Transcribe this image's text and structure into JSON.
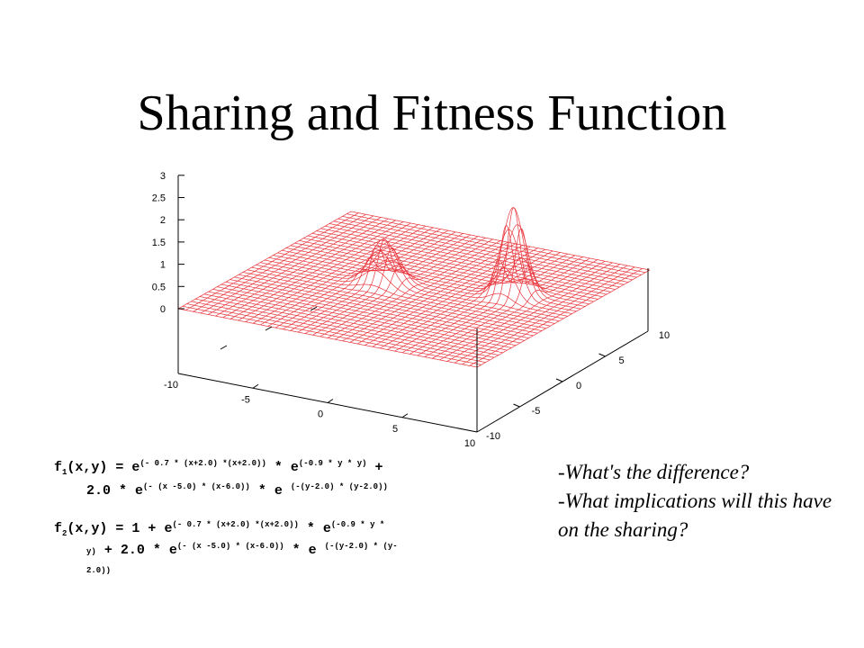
{
  "slide": {
    "title": "Sharing and Fitness Function"
  },
  "plot": {
    "type": "surface",
    "z_ticks": [
      "0",
      "0.5",
      "1",
      "1.5",
      "2",
      "2.5",
      "3"
    ],
    "x_ticks": [
      "-10",
      "-5",
      "0",
      "5",
      "10"
    ],
    "y_ticks": [
      "-10",
      "-5",
      "0",
      "5",
      "10"
    ],
    "xlim": [
      -10,
      10
    ],
    "ylim": [
      -10,
      10
    ],
    "zlim": [
      0,
      3
    ],
    "surface_color": "#e8353c",
    "peaks": [
      {
        "x": -2,
        "y": 0,
        "height": 1
      },
      {
        "x": 5.5,
        "y": 2,
        "height": 2
      }
    ]
  },
  "formulas": {
    "f1": {
      "name": "f",
      "sub": "1",
      "args": "(x,y) = e",
      "exp1": "(- 0.7 * (x+2.0) *(x+2.0))",
      "mid1": " * e",
      "exp2": "(-0.9 * y * y)",
      "tail1": " +",
      "line2_a": "2.0 * e",
      "exp3": "(- (x -5.0) * (x-6.0))",
      "mid2": " * e ",
      "exp4": "(-(y-2.0) * (y-2.0))"
    },
    "f2": {
      "name": "f",
      "sub": "2",
      "args": "(x,y) = 1 + e",
      "exp1": "(- 0.7 * (x+2.0) *(x+2.0))",
      "mid1": " * e",
      "exp2": "(-0.9 * y *",
      "line2_low": "y)",
      "line2_a": " + 2.0 * e",
      "exp3": "(- (x -5.0) * (x-6.0))",
      "mid2": " * e ",
      "exp4": "(-(y-2.0) * (y-",
      "line3_low": "2.0))"
    }
  },
  "questions": {
    "q1": "-What's the difference?",
    "q2": "-What implications will this have on the sharing?"
  }
}
